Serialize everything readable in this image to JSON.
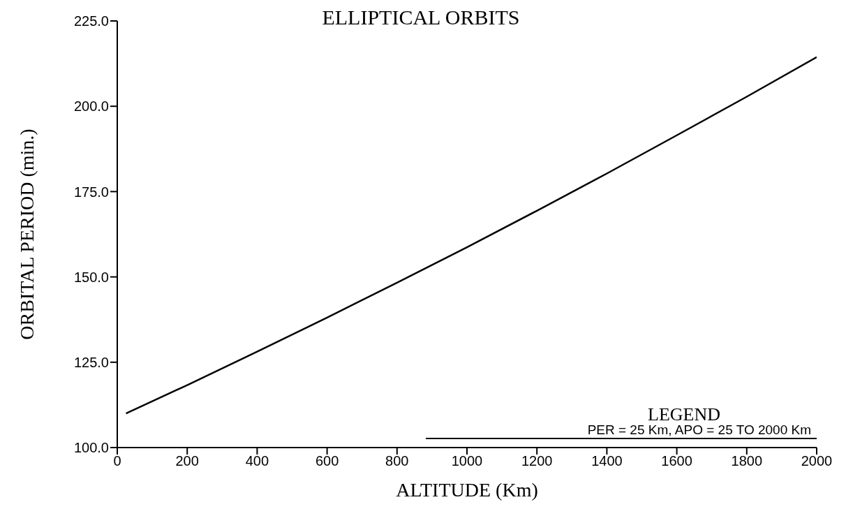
{
  "chart_data": {
    "type": "line",
    "title": "ELLIPTICAL ORBITS",
    "xlabel": "ALTITUDE (Km)",
    "ylabel": "ORBITAL PERIOD (min.)",
    "legend_title": "LEGEND",
    "legend": "bottom right",
    "marker": "none",
    "line_style": "solid",
    "grid": false,
    "x": [
      25,
      200,
      400,
      600,
      800,
      1000,
      1200,
      1400,
      1600,
      1800,
      2000
    ],
    "series": [
      {
        "name": "PER = 25 Km, APO = 25 TO 2000 Km",
        "color": "#000000",
        "values": [
          110.0,
          118.3,
          128.1,
          138.1,
          148.3,
          158.7,
          169.4,
          180.3,
          191.5,
          202.8,
          214.4
        ]
      }
    ],
    "xlim": [
      0,
      2000
    ],
    "xticks": [
      0,
      200,
      400,
      600,
      800,
      1000,
      1200,
      1400,
      1600,
      1800,
      2000
    ],
    "ylim": [
      100,
      225
    ],
    "yticks": [
      {
        "value": 100,
        "label": "100.0"
      },
      {
        "value": 125,
        "label": "125.0"
      },
      {
        "value": 150,
        "label": "150.0"
      },
      {
        "value": 175,
        "label": "175.0"
      },
      {
        "value": 200,
        "label": "200.0"
      },
      {
        "value": 225,
        "label": "225.0"
      }
    ]
  }
}
